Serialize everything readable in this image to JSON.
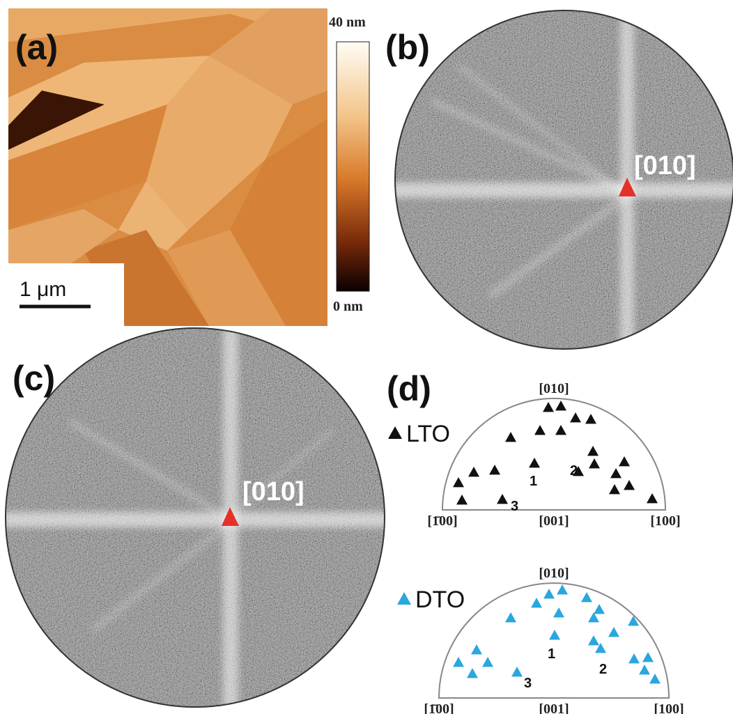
{
  "panel_a": {
    "label": "(a)",
    "colorbar_max": "40 nm",
    "colorbar_min": "0 nm",
    "scale_bar": "1 μm"
  },
  "panel_b": {
    "label": "(b)",
    "marker": "[010]"
  },
  "panel_c": {
    "label": "(c)",
    "marker": "[010]"
  },
  "panel_d": {
    "label": "(d)",
    "plots": [
      {
        "legend": "LTO",
        "top": "[010]",
        "left": "[1̄00]",
        "middle": "[001]",
        "right": "[100]",
        "points": [
          "1",
          "2",
          "3"
        ]
      },
      {
        "legend": "DTO",
        "top": "[010]",
        "left": "[1̄00]",
        "middle": "[001]",
        "right": "[100]",
        "points": [
          "1",
          "2",
          "3"
        ]
      }
    ]
  }
}
